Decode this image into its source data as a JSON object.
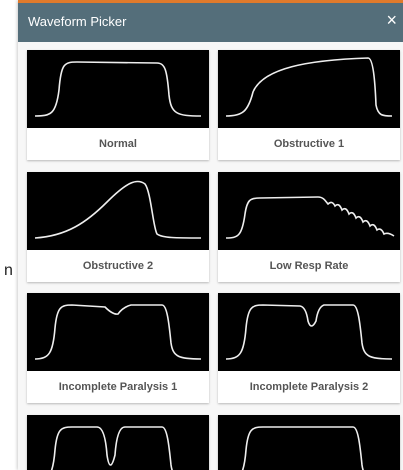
{
  "header": {
    "title": "Waveform Picker",
    "close": "×"
  },
  "side_text": "n",
  "cards": [
    {
      "label": "Normal"
    },
    {
      "label": "Obstructive 1"
    },
    {
      "label": "Obstructive 2"
    },
    {
      "label": "Low Resp Rate"
    },
    {
      "label": "Incomplete Paralysis 1"
    },
    {
      "label": "Incomplete Paralysis 2"
    }
  ]
}
